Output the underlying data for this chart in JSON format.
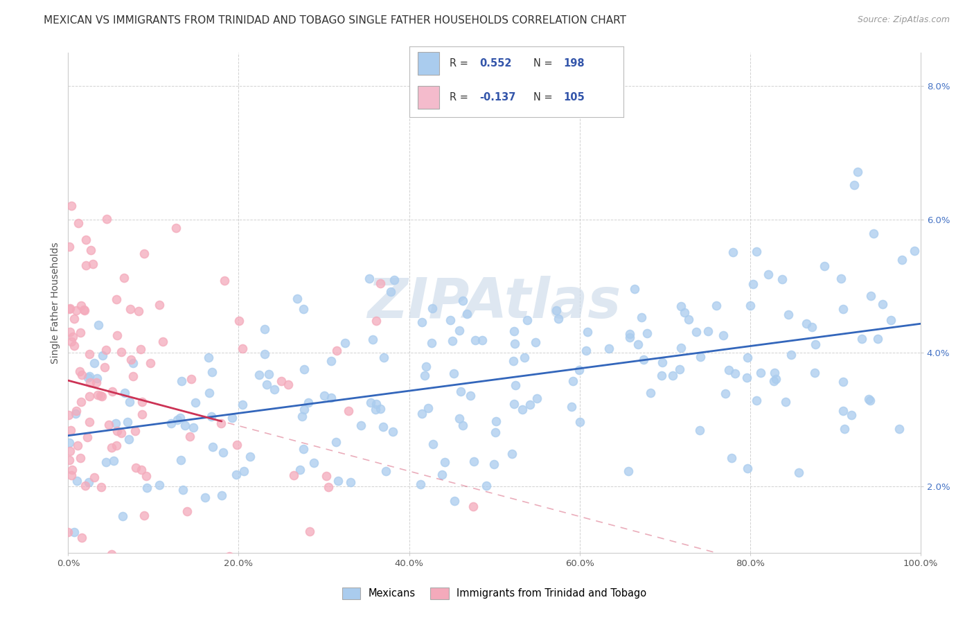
{
  "title": "MEXICAN VS IMMIGRANTS FROM TRINIDAD AND TOBAGO SINGLE FATHER HOUSEHOLDS CORRELATION CHART",
  "source": "Source: ZipAtlas.com",
  "ylabel": "Single Father Households",
  "xlabel": "",
  "xlim": [
    0,
    1
  ],
  "ylim": [
    0.01,
    0.085
  ],
  "yticks": [
    0.02,
    0.04,
    0.06,
    0.08
  ],
  "ytick_labels": [
    "2.0%",
    "4.0%",
    "6.0%",
    "8.0%"
  ],
  "xticks": [
    0.0,
    0.2,
    0.4,
    0.6,
    0.8,
    1.0
  ],
  "xtick_labels": [
    "0.0%",
    "20.0%",
    "40.0%",
    "60.0%",
    "80.0%",
    "100.0%"
  ],
  "r_mexican": 0.552,
  "n_mexican": 198,
  "r_trinidad": -0.137,
  "n_trinidad": 105,
  "scatter_color_mexican": "#aaccee",
  "scatter_color_trinidad": "#f4aabb",
  "line_color_mexican": "#3366bb",
  "line_color_trinidad": "#cc3355",
  "legend_patch_color_mexican": "#aaccee",
  "legend_patch_color_trinidad": "#f4bbcc",
  "legend_text_color": "#3355aa",
  "watermark_text": "ZIPAtlas",
  "watermark_color": "#c8d8e8",
  "background_color": "#ffffff",
  "title_fontsize": 11,
  "source_fontsize": 9,
  "legend_label_mexican": "Mexicans",
  "legend_label_trinidad": "Immigrants from Trinidad and Tobago",
  "tick_color": "#4472c4"
}
